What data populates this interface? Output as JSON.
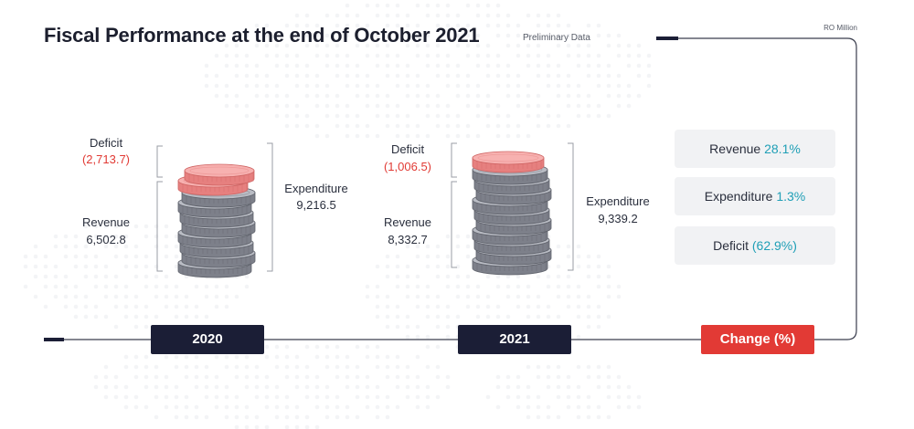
{
  "title": "Fiscal Performance at the end of October 2021",
  "subtitle": "Preliminary Data",
  "unit": "RO Million",
  "colors": {
    "navy": "#1b1e36",
    "red": "#e23a35",
    "teal": "#1f9fb6",
    "coin_silver": "#8c8f99",
    "coin_red": "#f08f8e"
  },
  "chart_data": {
    "type": "bar",
    "categories": [
      "2020",
      "2021"
    ],
    "series": [
      {
        "name": "Revenue",
        "values": [
          6502.8,
          8332.7
        ]
      },
      {
        "name": "Expenditure",
        "values": [
          9216.5,
          9339.2
        ]
      },
      {
        "name": "Deficit",
        "values": [
          -2713.7,
          -1006.5
        ]
      }
    ]
  },
  "years": [
    {
      "label": "2020",
      "deficit_label": "Deficit",
      "deficit_value": "(2,713.7)",
      "revenue_label": "Revenue",
      "revenue_value": "6,502.8",
      "expenditure_label": "Expenditure",
      "expenditure_value": "9,216.5"
    },
    {
      "label": "2021",
      "deficit_label": "Deficit",
      "deficit_value": "(1,006.5)",
      "revenue_label": "Revenue",
      "revenue_value": "8,332.7",
      "expenditure_label": "Expenditure",
      "expenditure_value": "9,339.2"
    }
  ],
  "change": {
    "label": "Change (%)",
    "items": [
      {
        "name": "Revenue",
        "value": "28.1%"
      },
      {
        "name": "Expenditure",
        "value": "1.3%"
      },
      {
        "name": "Deficit",
        "value": "(62.9%)"
      }
    ]
  }
}
